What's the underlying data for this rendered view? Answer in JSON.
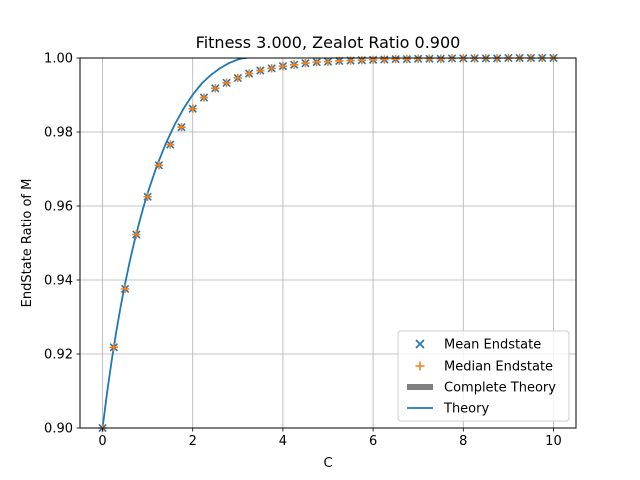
{
  "chart_data": {
    "type": "scatter",
    "title": "Fitness 3.000, Zealot Ratio 0.900",
    "xlabel": "C",
    "ylabel": "EndState Ratio of M",
    "xlim": [
      -0.5,
      10.5
    ],
    "ylim": [
      0.9,
      1.0
    ],
    "xticks": [
      0,
      2,
      4,
      6,
      8,
      10
    ],
    "xtick_labels": [
      "0",
      "2",
      "4",
      "6",
      "8",
      "10"
    ],
    "yticks": [
      0.9,
      0.92,
      0.94,
      0.96,
      0.98,
      1.0
    ],
    "ytick_labels": [
      "0.90",
      "0.92",
      "0.94",
      "0.96",
      "0.98",
      "1.00"
    ],
    "grid": true,
    "legend_position": "lower-right",
    "colors": {
      "mean": "#1f77b4",
      "median": "#ff7f0e",
      "complete_theory": "#808080",
      "theory": "#1f77b4"
    },
    "x": [
      0,
      0.25,
      0.5,
      0.75,
      1.0,
      1.25,
      1.5,
      1.75,
      2.0,
      2.25,
      2.5,
      2.75,
      3.0,
      3.25,
      3.5,
      3.75,
      4.0,
      4.25,
      4.5,
      4.75,
      5.0,
      5.25,
      5.5,
      5.75,
      6.0,
      6.25,
      6.5,
      6.75,
      7.0,
      7.25,
      7.5,
      7.75,
      8.0,
      8.25,
      8.5,
      8.75,
      9.0,
      9.25,
      9.5,
      9.75,
      10.0
    ],
    "series": [
      {
        "name": "Mean Endstate",
        "marker": "x",
        "values": [
          0.9,
          0.9218,
          0.9376,
          0.9523,
          0.9625,
          0.971,
          0.9766,
          0.9813,
          0.9863,
          0.9893,
          0.9918,
          0.9933,
          0.9946,
          0.9958,
          0.9966,
          0.9972,
          0.9978,
          0.9982,
          0.9986,
          0.9989,
          0.999,
          0.9992,
          0.9993,
          0.9994,
          0.9995,
          0.9996,
          0.9997,
          0.9997,
          0.9998,
          0.9998,
          0.9998,
          0.9999,
          0.9999,
          0.9999,
          0.9999,
          0.9999,
          1.0,
          1.0,
          1.0,
          1.0,
          1.0
        ]
      },
      {
        "name": "Median Endstate",
        "marker": "+",
        "values": [
          0.9,
          0.9218,
          0.9376,
          0.9523,
          0.9625,
          0.971,
          0.9766,
          0.9813,
          0.9863,
          0.9893,
          0.9918,
          0.9933,
          0.9946,
          0.9958,
          0.9966,
          0.9972,
          0.9978,
          0.9982,
          0.9986,
          0.9989,
          0.999,
          0.9992,
          0.9993,
          0.9994,
          0.9995,
          0.9996,
          0.9997,
          0.9997,
          0.9998,
          0.9998,
          0.9998,
          0.9999,
          0.9999,
          0.9999,
          0.9999,
          0.9999,
          1.0,
          1.0,
          1.0,
          1.0,
          1.0
        ]
      },
      {
        "name": "Complete Theory",
        "marker": "thick-line",
        "values": []
      },
      {
        "name": "Theory",
        "marker": "line",
        "x": [
          0,
          0.1,
          0.2,
          0.3,
          0.4,
          0.5,
          0.6,
          0.7,
          0.8,
          0.9,
          1.0,
          1.2,
          1.4,
          1.6,
          1.8,
          2.0,
          2.2,
          2.4,
          2.6,
          2.8,
          3.0,
          3.1,
          3.2
        ],
        "values": [
          0.9,
          0.9095,
          0.918,
          0.9257,
          0.9327,
          0.939,
          0.9448,
          0.9501,
          0.9549,
          0.9594,
          0.9635,
          0.9707,
          0.9768,
          0.982,
          0.9864,
          0.9901,
          0.9931,
          0.9954,
          0.9972,
          0.9986,
          0.9996,
          0.9999,
          1.0
        ]
      }
    ]
  }
}
